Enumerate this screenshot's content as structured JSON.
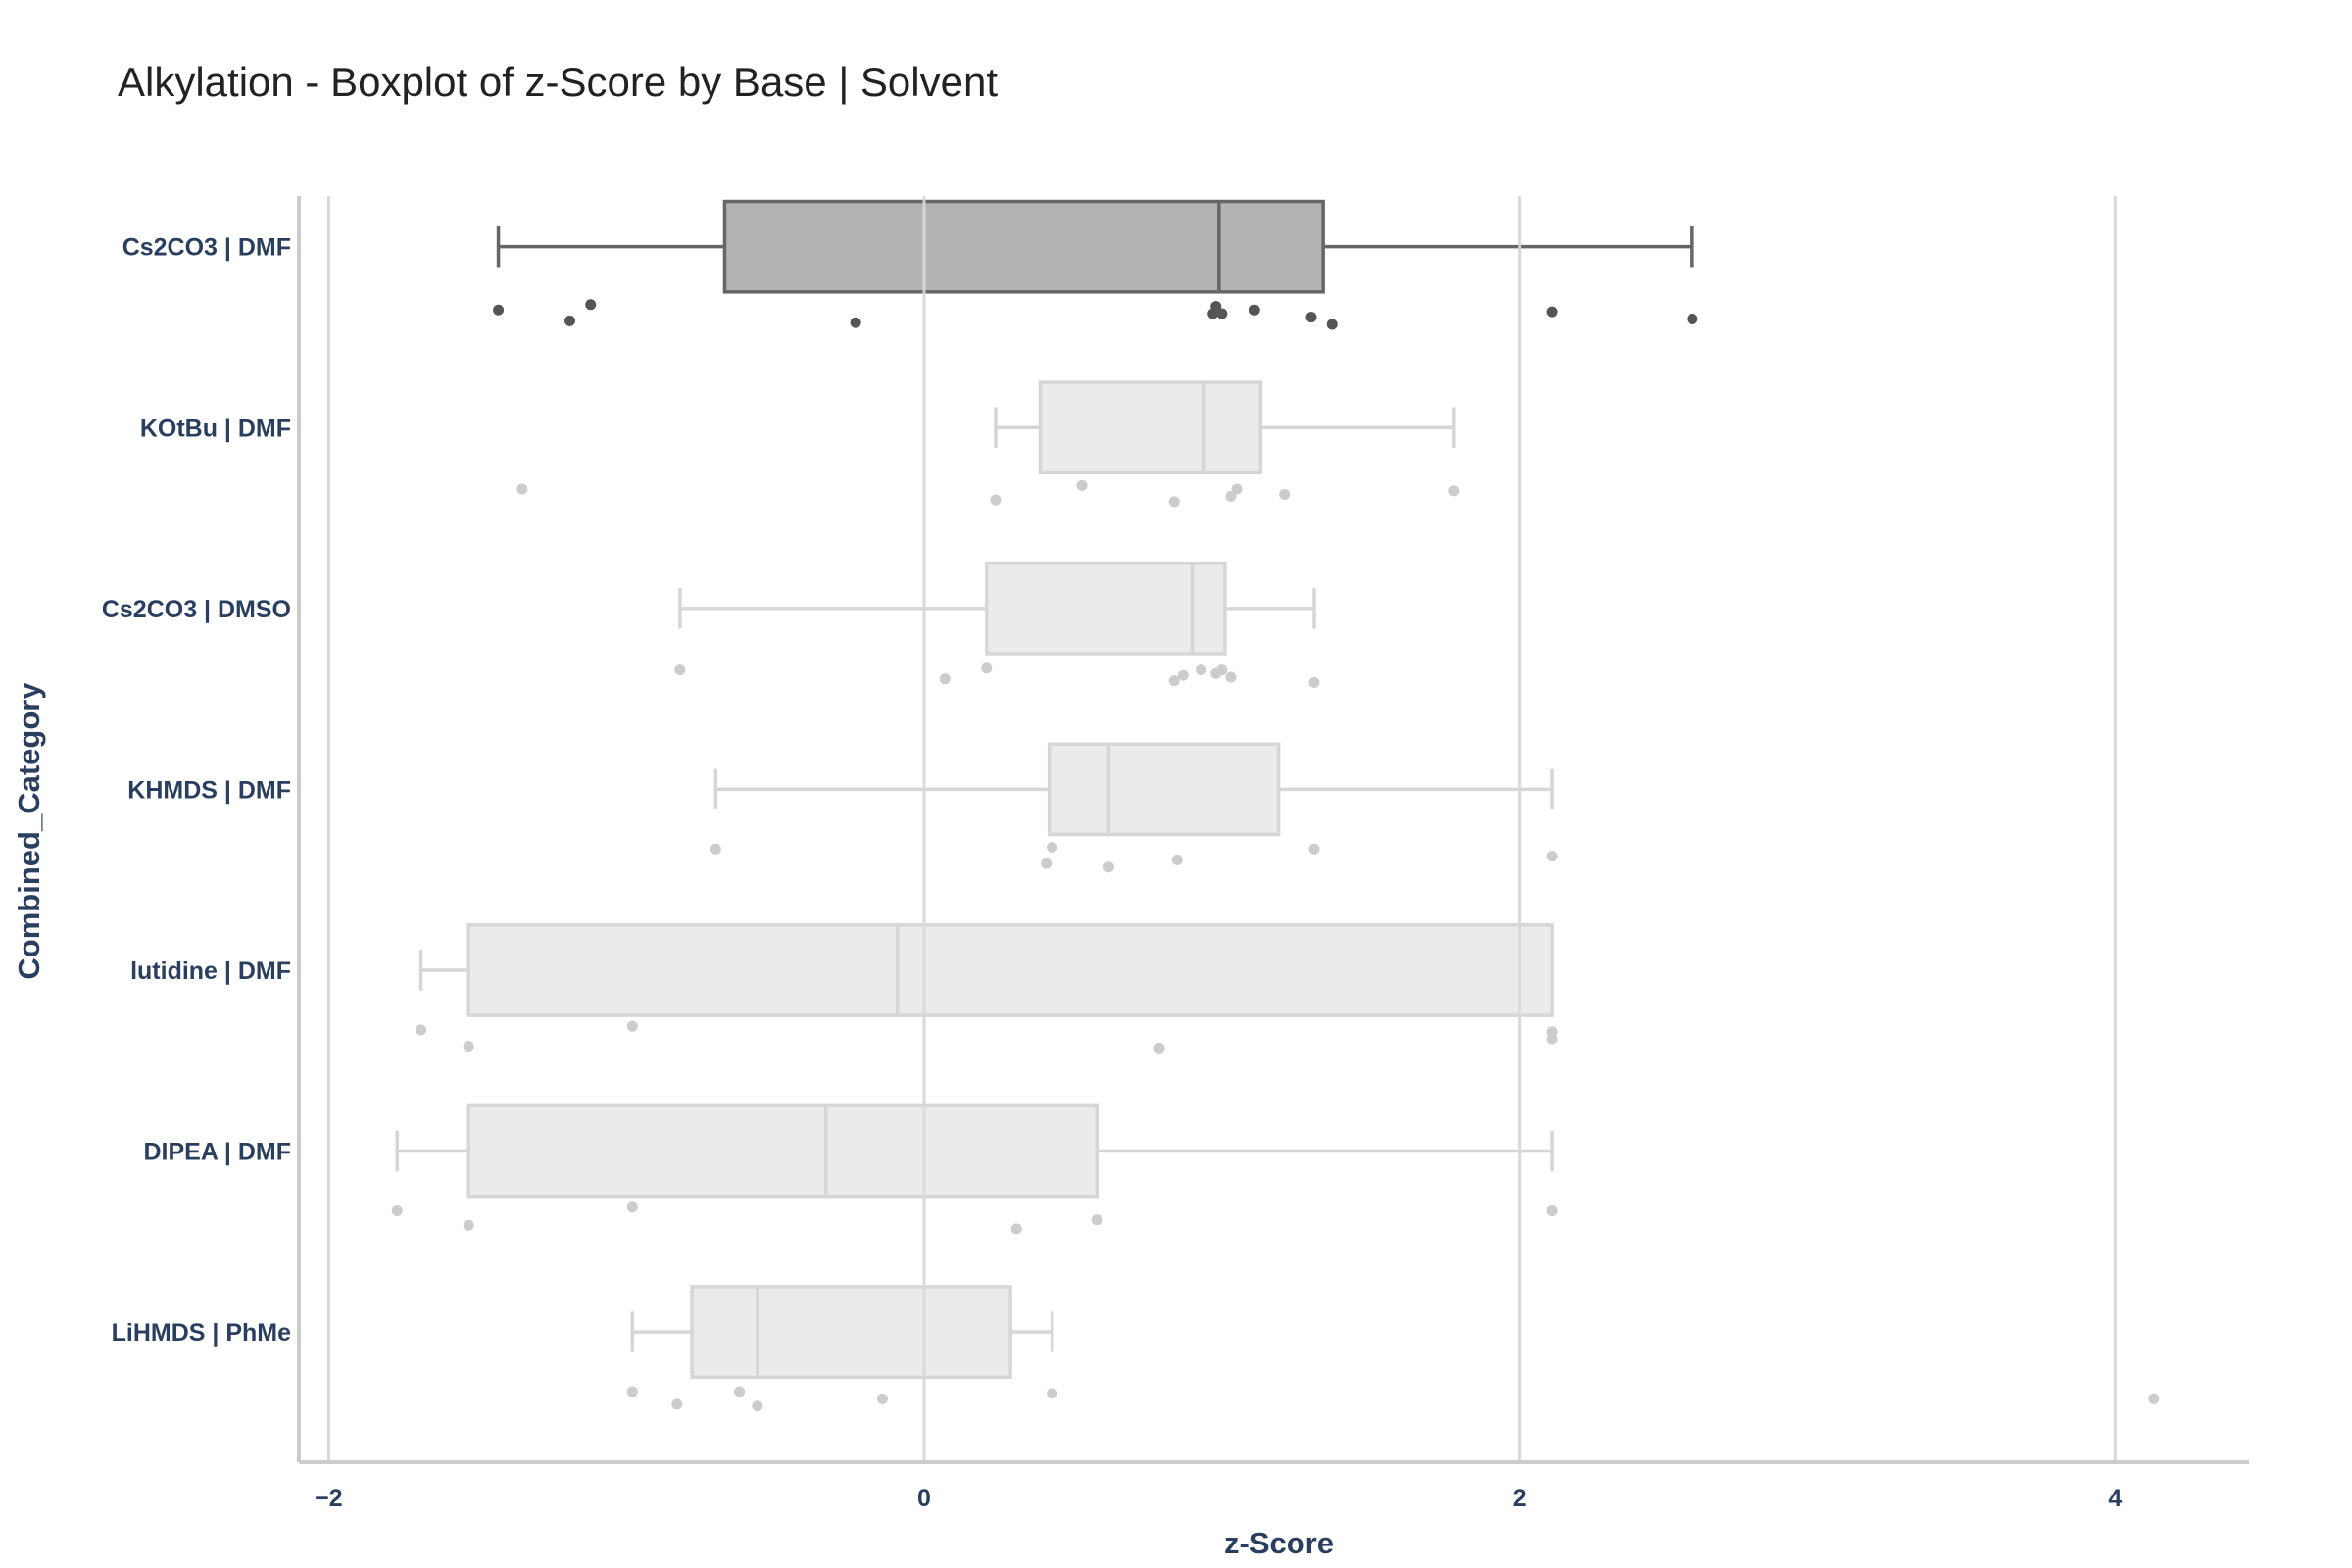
{
  "chart_data": {
    "type": "boxplot",
    "title": "Alkylation - Boxplot of z-Score by Base | Solvent",
    "xlabel": "z-Score",
    "ylabel": "Combined_Category",
    "xlim": [
      -2.1,
      4.45
    ],
    "x_ticks": [
      -2,
      0,
      2,
      4
    ],
    "x_tick_labels": [
      "−2",
      "0",
      "2",
      "4"
    ],
    "grid": "vertical",
    "orientation": "horizontal",
    "colors": {
      "highlight_fill": "#b3b3b3",
      "highlight_line": "#666666",
      "highlight_point": "#555555",
      "normal_fill": "#e8e8e8",
      "normal_line": "#d6d6d6",
      "normal_point": "#cccccc",
      "grid": "#d9d9d9",
      "axis": "#cccccc"
    },
    "categories": [
      "Cs2CO3 | DMF",
      "KOtBu | DMF",
      "Cs2CO3 | DMSO",
      "KHMDS | DMF",
      "lutidine | DMF",
      "DIPEA | DMF",
      "LiHMDS | PhMe"
    ],
    "boxes": [
      {
        "category": "Cs2CO3 | DMF",
        "highlight": true,
        "whisker_low": -1.43,
        "q1": -0.67,
        "median": 0.99,
        "q3": 1.34,
        "whisker_high": 2.58,
        "points": [
          [
            -1.43,
            0.35
          ],
          [
            -1.19,
            0.41
          ],
          [
            -1.12,
            0.32
          ],
          [
            -0.23,
            0.42
          ],
          [
            0.97,
            0.37
          ],
          [
            0.98,
            0.33
          ],
          [
            1.0,
            0.37
          ],
          [
            1.11,
            0.35
          ],
          [
            1.3,
            0.39
          ],
          [
            1.37,
            0.43
          ],
          [
            2.11,
            0.36
          ],
          [
            2.58,
            0.4
          ]
        ]
      },
      {
        "category": "KOtBu | DMF",
        "highlight": false,
        "whisker_low": 0.24,
        "q1": 0.39,
        "median": 0.94,
        "q3": 1.13,
        "whisker_high": 1.78,
        "points": [
          [
            -1.35,
            0.34
          ],
          [
            0.24,
            0.4
          ],
          [
            0.53,
            0.32
          ],
          [
            0.84,
            0.41
          ],
          [
            1.03,
            0.38
          ],
          [
            1.05,
            0.34
          ],
          [
            1.21,
            0.37
          ],
          [
            1.78,
            0.35
          ]
        ]
      },
      {
        "category": "Cs2CO3 | DMSO",
        "highlight": false,
        "whisker_low": -0.82,
        "q1": 0.21,
        "median": 0.9,
        "q3": 1.01,
        "whisker_high": 1.31,
        "points": [
          [
            -0.82,
            0.34
          ],
          [
            0.07,
            0.39
          ],
          [
            0.21,
            0.33
          ],
          [
            0.84,
            0.4
          ],
          [
            0.87,
            0.37
          ],
          [
            0.93,
            0.34
          ],
          [
            0.98,
            0.36
          ],
          [
            1.0,
            0.34
          ],
          [
            1.03,
            0.38
          ],
          [
            1.31,
            0.41
          ]
        ]
      },
      {
        "category": "KHMDS | DMF",
        "highlight": false,
        "whisker_low": -0.7,
        "q1": 0.42,
        "median": 0.62,
        "q3": 1.19,
        "whisker_high": 2.11,
        "points": [
          [
            -0.7,
            0.33
          ],
          [
            0.41,
            0.41
          ],
          [
            0.43,
            0.32
          ],
          [
            0.62,
            0.43
          ],
          [
            0.85,
            0.39
          ],
          [
            1.31,
            0.33
          ],
          [
            2.11,
            0.37
          ]
        ]
      },
      {
        "category": "lutidine | DMF",
        "highlight": false,
        "whisker_low": -1.69,
        "q1": -1.53,
        "median": -0.09,
        "q3": 2.11,
        "whisker_high": 2.11,
        "points": [
          [
            -1.69,
            0.33
          ],
          [
            -1.53,
            0.42
          ],
          [
            -0.98,
            0.31
          ],
          [
            0.79,
            0.43
          ],
          [
            2.11,
            0.34
          ],
          [
            2.11,
            0.38
          ]
        ]
      },
      {
        "category": "DIPEA | DMF",
        "highlight": false,
        "whisker_low": -1.77,
        "q1": -1.53,
        "median": -0.33,
        "q3": 0.58,
        "whisker_high": 2.11,
        "points": [
          [
            -1.77,
            0.33
          ],
          [
            -1.53,
            0.41
          ],
          [
            -0.98,
            0.31
          ],
          [
            0.31,
            0.43
          ],
          [
            0.58,
            0.38
          ],
          [
            2.11,
            0.33
          ]
        ]
      },
      {
        "category": "LiHMDS | PhMe",
        "highlight": false,
        "whisker_low": -0.98,
        "q1": -0.78,
        "median": -0.56,
        "q3": 0.29,
        "whisker_high": 0.43,
        "points": [
          [
            -0.98,
            0.33
          ],
          [
            -0.83,
            0.4
          ],
          [
            -0.62,
            0.33
          ],
          [
            -0.56,
            0.41
          ],
          [
            -0.14,
            0.37
          ],
          [
            0.43,
            0.34
          ],
          [
            4.13,
            0.37
          ]
        ]
      }
    ]
  }
}
